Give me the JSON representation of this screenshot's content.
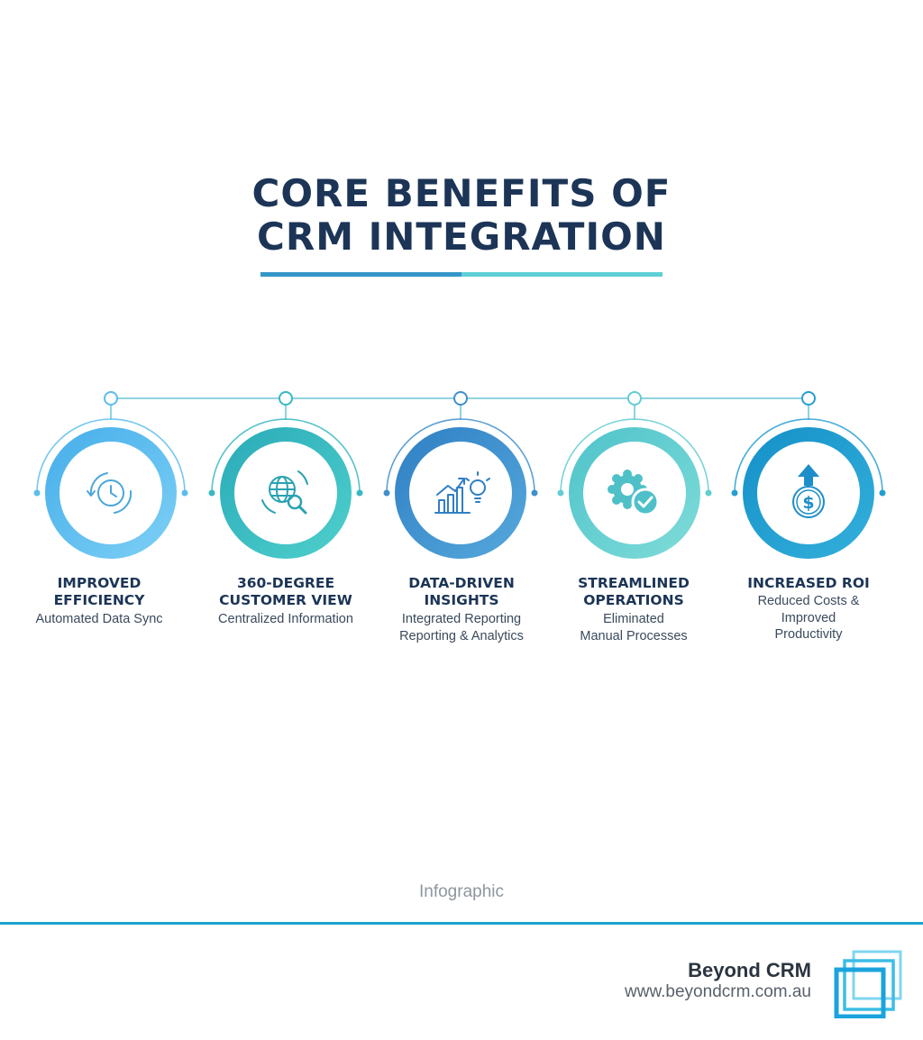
{
  "title": {
    "line1": "CORE BENEFITS OF",
    "line2": "CRM INTEGRATION"
  },
  "benefits": [
    {
      "title1": "IMPROVED",
      "title2": "EFFICIENCY",
      "desc1": "Automated Data Sync",
      "desc2": "",
      "desc3": "",
      "icon": "clock-sync-icon",
      "color": "#5bbdee"
    },
    {
      "title1": "360-DEGREE",
      "title2": "CUSTOMER VIEW",
      "desc1": "Centralized Information",
      "desc2": "",
      "desc3": "",
      "icon": "globe-search-icon",
      "color": "#38b8c0"
    },
    {
      "title1": "DATA-DRIVEN",
      "title2": "INSIGHTS",
      "desc1": "Integrated Reporting",
      "desc2": "Reporting & Analytics",
      "desc3": "",
      "icon": "chart-bulb-icon",
      "color": "#3f8fcc"
    },
    {
      "title1": "STREAMLINED",
      "title2": "OPERATIONS",
      "desc1": "Eliminated",
      "desc2": "Manual Processes",
      "desc3": "",
      "icon": "gear-check-icon",
      "color": "#62cdd1"
    },
    {
      "title1": "INCREASED ROI",
      "title2": "",
      "desc1": "Reduced Costs &",
      "desc2": "Improved",
      "desc3": "Productivity",
      "icon": "dollar-arrow-icon",
      "color": "#259ed2"
    }
  ],
  "caption": "Infographic",
  "footer": {
    "brand": "Beyond CRM",
    "url": "www.beyondcrm.com.au",
    "logo_icon": "beyond-crm-logo-icon",
    "rule_color": "#1aa3cf"
  },
  "colors": {
    "title": "#1c3557",
    "underline_left": "#3596c8",
    "underline_right": "#5fcfd7",
    "connector": "#8fd3e0"
  }
}
